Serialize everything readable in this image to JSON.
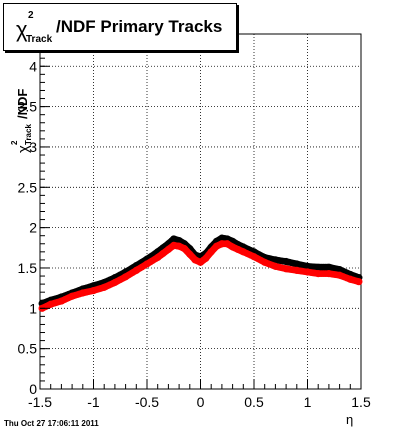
{
  "chart_data": {
    "type": "scatter",
    "title": {
      "symbol": "χ",
      "sup": "2",
      "sub": "Track",
      "text": "/NDF  Primary Tracks"
    },
    "ylabel": {
      "symbol": "χ",
      "sup": "2",
      "sub": "Track",
      "text": "/NDF"
    },
    "xlabel": "η",
    "xlim": [
      -1.5,
      1.5
    ],
    "ylim": [
      0,
      4.4
    ],
    "x_ticks": [
      "-1.5",
      "-1",
      "-0.5",
      "0",
      "0.5",
      "1",
      "1.5"
    ],
    "y_ticks": [
      "0",
      "0.5",
      "1",
      "1.5",
      "2",
      "2.5",
      "3",
      "3.5",
      "4"
    ],
    "grid": true,
    "series": [
      {
        "color": "#000000",
        "x": [
          -1.48,
          -1.4,
          -1.3,
          -1.2,
          -1.1,
          -1.0,
          -0.9,
          -0.8,
          -0.7,
          -0.6,
          -0.5,
          -0.4,
          -0.35,
          -0.3,
          -0.25,
          -0.2,
          -0.15,
          -0.1,
          -0.05,
          0.0,
          0.05,
          0.1,
          0.15,
          0.2,
          0.25,
          0.3,
          0.35,
          0.4,
          0.5,
          0.6,
          0.7,
          0.8,
          0.9,
          1.0,
          1.1,
          1.2,
          1.3,
          1.4,
          1.48
        ],
        "y": [
          1.06,
          1.1,
          1.14,
          1.19,
          1.24,
          1.28,
          1.32,
          1.38,
          1.45,
          1.53,
          1.61,
          1.7,
          1.75,
          1.8,
          1.86,
          1.84,
          1.8,
          1.74,
          1.66,
          1.64,
          1.68,
          1.76,
          1.83,
          1.87,
          1.86,
          1.83,
          1.79,
          1.76,
          1.7,
          1.63,
          1.6,
          1.58,
          1.55,
          1.52,
          1.51,
          1.51,
          1.48,
          1.42,
          1.38
        ]
      },
      {
        "color": "#ff0000",
        "x": [
          -1.48,
          -1.4,
          -1.3,
          -1.2,
          -1.1,
          -1.0,
          -0.9,
          -0.8,
          -0.7,
          -0.6,
          -0.5,
          -0.4,
          -0.35,
          -0.3,
          -0.25,
          -0.2,
          -0.15,
          -0.1,
          -0.05,
          0.0,
          0.05,
          0.1,
          0.15,
          0.2,
          0.25,
          0.3,
          0.35,
          0.4,
          0.5,
          0.6,
          0.7,
          0.8,
          0.9,
          1.0,
          1.1,
          1.2,
          1.3,
          1.4,
          1.48
        ],
        "y": [
          1.0,
          1.05,
          1.09,
          1.15,
          1.19,
          1.22,
          1.26,
          1.32,
          1.39,
          1.47,
          1.55,
          1.63,
          1.68,
          1.73,
          1.78,
          1.77,
          1.74,
          1.67,
          1.6,
          1.57,
          1.62,
          1.7,
          1.77,
          1.8,
          1.8,
          1.76,
          1.73,
          1.7,
          1.64,
          1.57,
          1.52,
          1.49,
          1.47,
          1.45,
          1.43,
          1.43,
          1.41,
          1.36,
          1.33
        ]
      }
    ]
  },
  "footer": {
    "timestamp": "Thu Oct 27 17:06:11 2011"
  }
}
